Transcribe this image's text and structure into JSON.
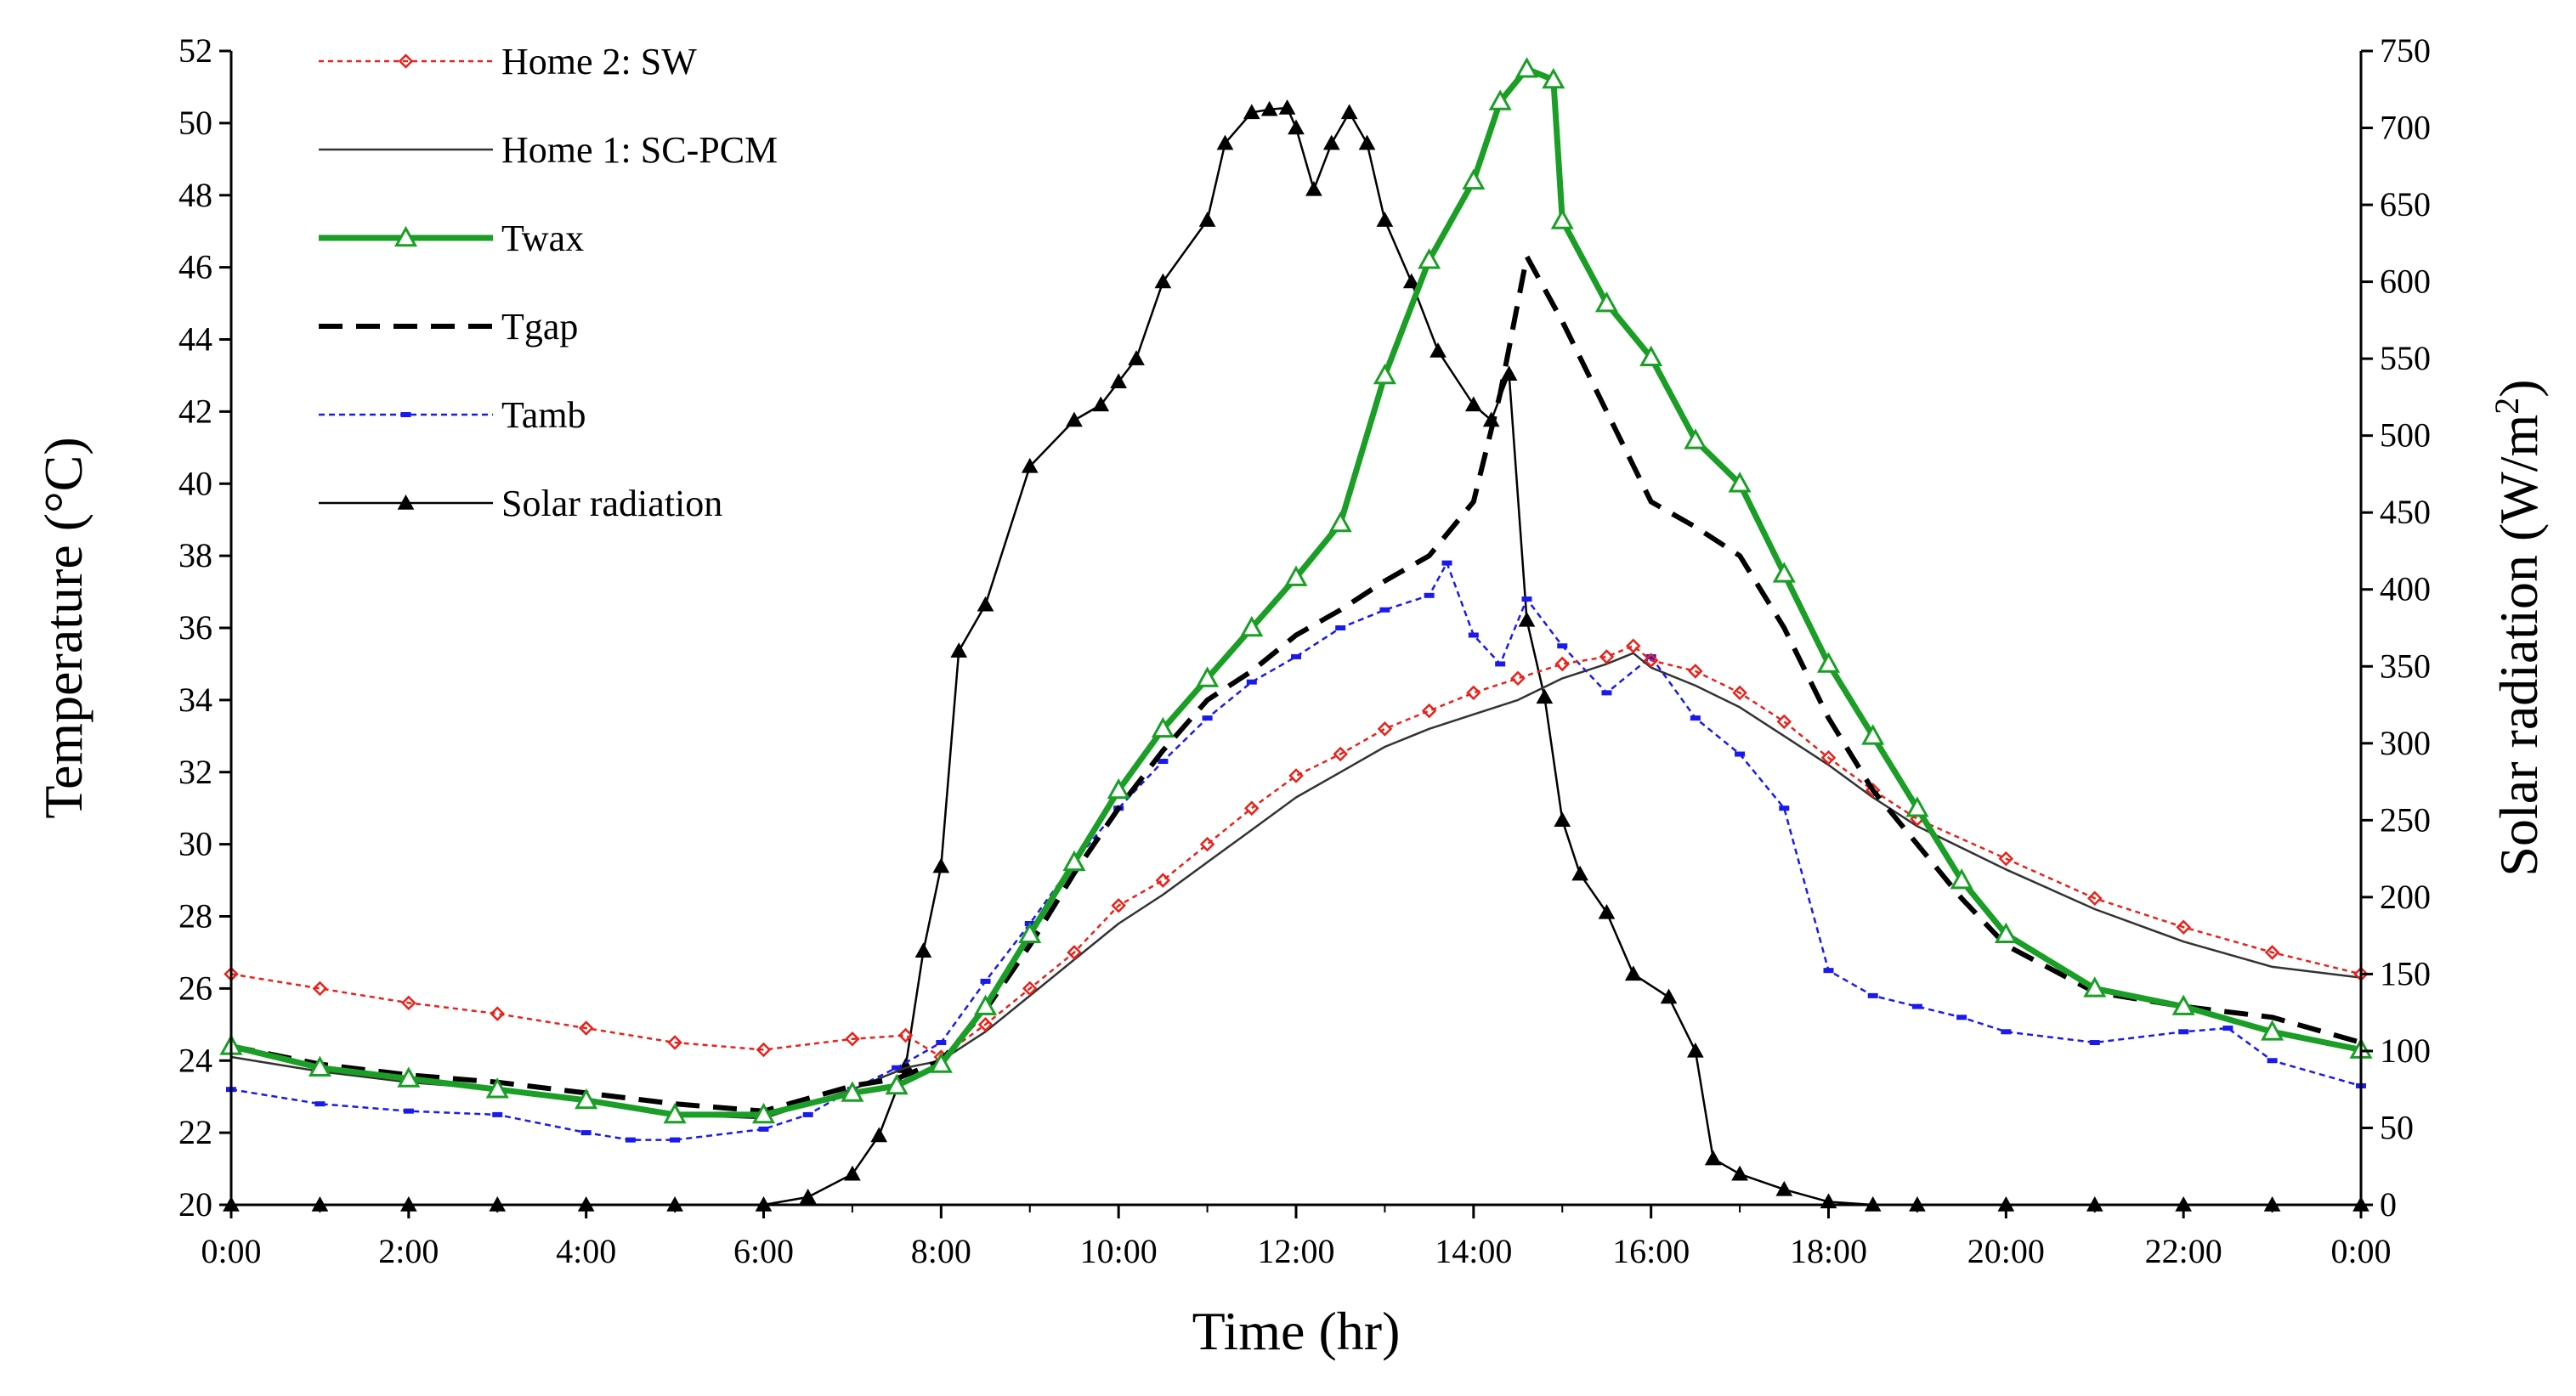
{
  "chart_data": {
    "type": "line",
    "title": "",
    "xlabel": "Time (hr)",
    "ylabel": "Temperature (°C)",
    "y2label_base": "Solar radiation (W/m",
    "y2label_sup": "2",
    "y2label_close": ")",
    "xlim": [
      0,
      24
    ],
    "ylim": [
      20,
      52
    ],
    "y2lim": [
      0,
      750
    ],
    "x_tick_values": [
      0,
      2,
      4,
      6,
      8,
      10,
      12,
      14,
      16,
      18,
      20,
      22,
      24
    ],
    "x_tick_labels": [
      "0:00",
      "2:00",
      "4:00",
      "6:00",
      "8:00",
      "10:00",
      "12:00",
      "14:00",
      "16:00",
      "18:00",
      "20:00",
      "22:00",
      "0:00"
    ],
    "y_tick_labels": [
      "20",
      "22",
      "24",
      "26",
      "28",
      "30",
      "32",
      "34",
      "36",
      "38",
      "40",
      "42",
      "44",
      "46",
      "48",
      "50",
      "52"
    ],
    "y2_tick_labels": [
      "0",
      "50",
      "100",
      "150",
      "200",
      "250",
      "300",
      "350",
      "400",
      "450",
      "500",
      "550",
      "600",
      "650",
      "700",
      "750"
    ],
    "legend_position": "top-left",
    "series": [
      {
        "name": "Home 2: SW",
        "axis": "left",
        "color": "#e8211a",
        "dash": "6,5",
        "marker": "diamond",
        "stroke_width": 2.5,
        "x": [
          0,
          1,
          2,
          3,
          4,
          5,
          6,
          7,
          7.6,
          8,
          8.5,
          9,
          9.5,
          10,
          10.5,
          11,
          11.5,
          12,
          12.5,
          13,
          13.5,
          14,
          14.5,
          15,
          15.5,
          15.8,
          16,
          16.5,
          17,
          17.5,
          18,
          18.5,
          19,
          20,
          21,
          22,
          23,
          24
        ],
        "values": [
          26.4,
          26.0,
          25.6,
          25.3,
          24.9,
          24.5,
          24.3,
          24.6,
          24.7,
          24.1,
          25.0,
          26.0,
          27.0,
          28.3,
          29.0,
          30.0,
          31.0,
          31.9,
          32.5,
          33.2,
          33.7,
          34.2,
          34.6,
          35.0,
          35.2,
          35.5,
          35.1,
          34.8,
          34.2,
          33.4,
          32.4,
          31.5,
          30.7,
          29.6,
          28.5,
          27.7,
          27.0,
          26.4
        ]
      },
      {
        "name": "Home 1: SC-PCM",
        "axis": "left",
        "color": "#333333",
        "dash": "",
        "marker": "none",
        "stroke_width": 2.5,
        "x": [
          0,
          1,
          2,
          3,
          4,
          5,
          6,
          7,
          7.6,
          8,
          8.5,
          9,
          9.5,
          10,
          10.5,
          11,
          11.5,
          12,
          12.5,
          13,
          13.5,
          14,
          14.5,
          15,
          15.5,
          15.8,
          16,
          16.5,
          17,
          17.5,
          18,
          18.5,
          19,
          20,
          21,
          22,
          23,
          24
        ],
        "values": [
          24.1,
          23.7,
          23.4,
          23.2,
          22.9,
          22.5,
          22.4,
          23.2,
          23.8,
          24.0,
          24.8,
          25.8,
          26.8,
          27.8,
          28.6,
          29.5,
          30.4,
          31.3,
          32.0,
          32.7,
          33.2,
          33.6,
          34.0,
          34.6,
          35.0,
          35.3,
          34.9,
          34.4,
          33.8,
          33.0,
          32.2,
          31.3,
          30.5,
          29.3,
          28.2,
          27.3,
          26.6,
          26.3
        ]
      },
      {
        "name": "Twax",
        "axis": "left",
        "color": "#1a9e26",
        "dash": "",
        "marker": "triangle-open",
        "stroke_width": 7,
        "x": [
          0,
          1,
          2,
          3,
          4,
          5,
          6,
          7,
          7.5,
          8,
          8.5,
          9,
          9.5,
          10,
          10.5,
          11,
          11.5,
          12,
          12.5,
          13,
          13.5,
          14,
          14.3,
          14.6,
          14.9,
          15,
          15.5,
          16,
          16.5,
          17,
          17.5,
          18,
          18.5,
          19,
          19.5,
          20,
          21,
          22,
          23,
          24
        ],
        "values": [
          24.4,
          23.8,
          23.5,
          23.2,
          22.9,
          22.5,
          22.5,
          23.1,
          23.3,
          23.9,
          25.5,
          27.5,
          29.5,
          31.5,
          33.2,
          34.6,
          36.0,
          37.4,
          38.9,
          43.0,
          46.2,
          48.4,
          50.6,
          51.5,
          51.2,
          47.3,
          45.0,
          43.5,
          41.2,
          40.0,
          37.5,
          35.0,
          33.0,
          31.0,
          29.0,
          27.5,
          26.0,
          25.5,
          24.8,
          24.3
        ]
      },
      {
        "name": "Tgap",
        "axis": "left",
        "color": "#000000",
        "dash": "28,16",
        "marker": "none",
        "stroke_width": 6,
        "x": [
          0,
          1,
          2,
          3,
          4,
          5,
          6,
          7,
          7.5,
          8,
          8.5,
          9,
          9.5,
          10,
          10.5,
          11,
          11.5,
          12,
          12.5,
          13,
          13.5,
          14,
          14.3,
          14.6,
          15,
          15.5,
          16,
          16.5,
          17,
          17.5,
          18,
          18.5,
          19,
          19.5,
          20,
          21,
          22,
          23,
          24
        ],
        "values": [
          24.4,
          23.9,
          23.6,
          23.4,
          23.1,
          22.8,
          22.6,
          23.3,
          23.5,
          24.0,
          25.4,
          27.2,
          29.2,
          31.0,
          32.6,
          34.0,
          34.8,
          35.8,
          36.5,
          37.3,
          38.0,
          39.5,
          42.5,
          46.3,
          44.5,
          42.0,
          39.5,
          38.8,
          38.0,
          36.0,
          33.5,
          31.5,
          30.0,
          28.5,
          27.2,
          25.9,
          25.5,
          25.2,
          24.5
        ]
      },
      {
        "name": "Tamb",
        "axis": "left",
        "color": "#1a1aee",
        "dash": "7,5",
        "marker": "dash",
        "stroke_width": 2.5,
        "x": [
          0,
          1,
          2,
          3,
          4,
          4.5,
          5,
          6,
          6.5,
          7,
          7.5,
          8,
          8.5,
          9,
          9.5,
          10,
          10.5,
          11,
          11.5,
          12,
          12.5,
          13,
          13.5,
          13.7,
          14,
          14.3,
          14.6,
          15,
          15.5,
          16,
          16.5,
          17,
          17.5,
          18,
          18.5,
          19,
          19.5,
          20,
          21,
          22,
          22.5,
          23,
          24
        ],
        "values": [
          23.2,
          22.8,
          22.6,
          22.5,
          22.0,
          21.8,
          21.8,
          22.1,
          22.5,
          23.2,
          23.8,
          24.5,
          26.2,
          27.8,
          29.5,
          31.0,
          32.3,
          33.5,
          34.5,
          35.2,
          36.0,
          36.5,
          36.9,
          37.8,
          35.8,
          35.0,
          36.8,
          35.5,
          34.2,
          35.2,
          33.5,
          32.5,
          31.0,
          26.5,
          25.8,
          25.5,
          25.2,
          24.8,
          24.5,
          24.8,
          24.9,
          24.0,
          23.3
        ]
      },
      {
        "name": "Solar radiation",
        "axis": "right",
        "color": "#000000",
        "dash": "",
        "marker": "triangle-filled",
        "stroke_width": 2.5,
        "x": [
          0,
          1,
          2,
          3,
          4,
          5,
          6,
          6.5,
          7,
          7.3,
          7.6,
          7.8,
          8,
          8.2,
          8.5,
          9,
          9.5,
          9.8,
          10,
          10.2,
          10.5,
          11,
          11.2,
          11.5,
          11.7,
          11.9,
          12,
          12.2,
          12.4,
          12.6,
          12.8,
          13,
          13.3,
          13.6,
          14,
          14.2,
          14.4,
          14.6,
          14.8,
          15,
          15.2,
          15.5,
          15.8,
          16.2,
          16.5,
          16.7,
          17,
          17.5,
          18,
          18.5,
          19,
          20,
          21,
          22,
          23,
          24
        ],
        "values": [
          0,
          0,
          0,
          0,
          0,
          0,
          0,
          5,
          20,
          45,
          90,
          165,
          220,
          360,
          390,
          480,
          510,
          520,
          535,
          550,
          600,
          640,
          690,
          710,
          712,
          713,
          700,
          660,
          690,
          710,
          690,
          640,
          600,
          555,
          520,
          510,
          540,
          380,
          330,
          250,
          215,
          190,
          150,
          135,
          100,
          30,
          20,
          10,
          2,
          0,
          0,
          0,
          0,
          0,
          0,
          0
        ]
      }
    ]
  }
}
